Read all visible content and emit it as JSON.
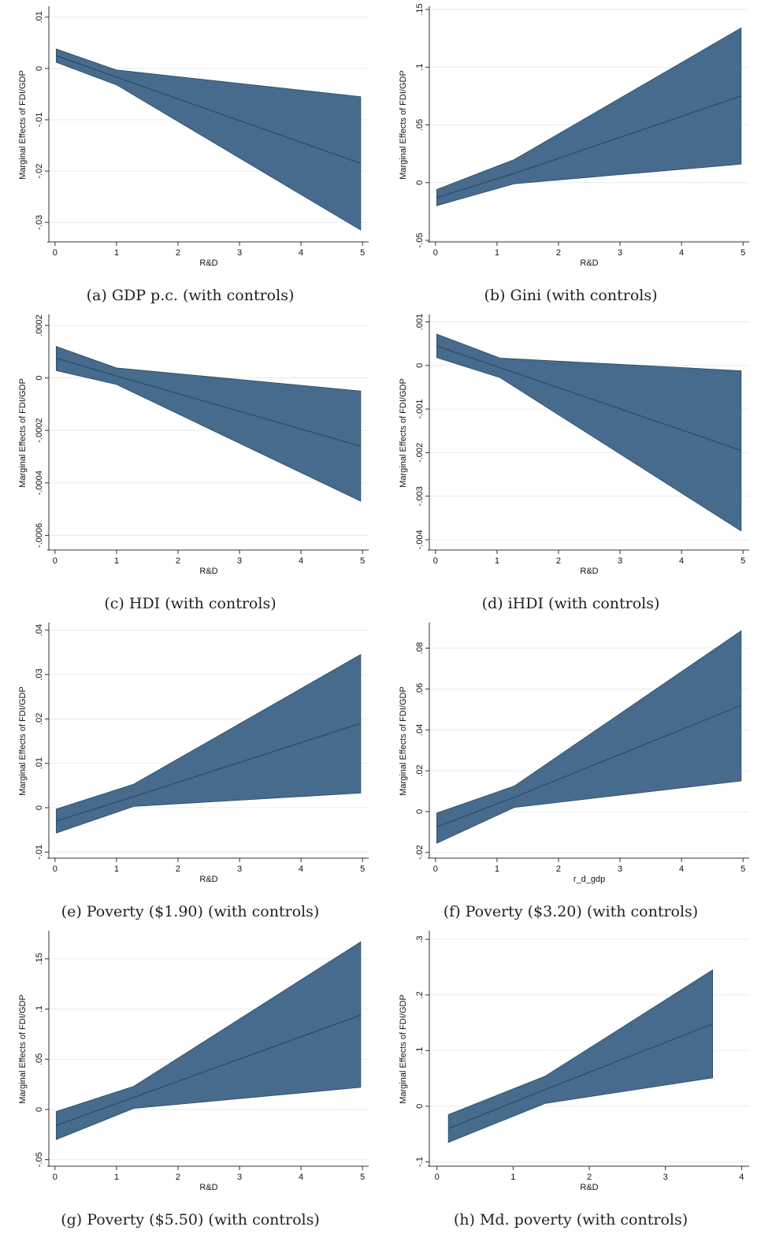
{
  "chart_data": [
    {
      "type": "area",
      "caption": "(a) GDP p.c. (with controls)",
      "xlabel": "R&D",
      "ylabel": "Marginal Effects of FDI/GDP",
      "xlim": [
        -0.1,
        5.1
      ],
      "ylim": [
        -0.0335,
        0.0115
      ],
      "xticks": [
        "0",
        "1",
        "2",
        "3",
        "4",
        "5"
      ],
      "xtick_values": [
        0,
        1,
        2,
        3,
        4,
        5
      ],
      "yticks": [
        "-.03",
        "-.02",
        "-.01",
        "0",
        ".01"
      ],
      "ytick_values": [
        -0.03,
        -0.02,
        -0.01,
        0,
        0.01
      ],
      "x": [
        0.02,
        1.0,
        4.97
      ],
      "estimate": [
        0.0025,
        -0.0017,
        -0.0185
      ],
      "upper": [
        0.0038,
        -0.0003,
        -0.0055
      ],
      "lower": [
        0.0012,
        -0.0032,
        -0.0315
      ],
      "color": "#476b8c",
      "line_color": "#2a4a68"
    },
    {
      "type": "area",
      "caption": "(b) Gini (with controls)",
      "xlabel": "R&D",
      "ylabel": "Marginal Effects of FDI/GDP",
      "xlim": [
        -0.1,
        5.1
      ],
      "ylim": [
        -0.05,
        0.15
      ],
      "xticks": [
        "0",
        "1",
        "2",
        "3",
        "4",
        "5"
      ],
      "xtick_values": [
        0,
        1,
        2,
        3,
        4,
        5
      ],
      "yticks": [
        "-.05",
        "0",
        ".05",
        ".1",
        ".15"
      ],
      "ytick_values": [
        -0.05,
        0,
        0.05,
        0.1,
        0.15
      ],
      "x": [
        0.02,
        1.28,
        4.97
      ],
      "estimate": [
        -0.013,
        0.008,
        0.075
      ],
      "upper": [
        -0.006,
        0.02,
        0.134
      ],
      "lower": [
        -0.02,
        -0.001,
        0.016
      ],
      "color": "#476b8c",
      "line_color": "#2a4a68"
    },
    {
      "type": "area",
      "caption": "(c) HDI (with controls)",
      "xlabel": "R&D",
      "ylabel": "Marginal Effects of FDI/GDP",
      "xlim": [
        -0.1,
        5.1
      ],
      "ylim": [
        -0.00065,
        0.00023
      ],
      "xticks": [
        "0",
        "1",
        "2",
        "3",
        "4",
        "5"
      ],
      "xtick_values": [
        0,
        1,
        2,
        3,
        4,
        5
      ],
      "yticks": [
        "-.0006",
        "-.0004",
        "-.0002",
        "0",
        ".0002"
      ],
      "ytick_values": [
        -0.0006,
        -0.0004,
        -0.0002,
        0,
        0.0002
      ],
      "x": [
        0.02,
        1.0,
        4.97
      ],
      "estimate": [
        7.5e-05,
        7.5e-06,
        -0.00026
      ],
      "upper": [
        0.00012,
        3.8e-05,
        -5e-05
      ],
      "lower": [
        2.8e-05,
        -2.5e-05,
        -0.00047
      ],
      "color": "#476b8c",
      "line_color": "#2a4a68"
    },
    {
      "type": "area",
      "caption": "(d) iHDI (with controls)",
      "xlabel": "R&D",
      "ylabel": "Marginal Effects of FDI/GDP",
      "xlim": [
        -0.1,
        5.1
      ],
      "ylim": [
        -0.0042,
        0.0011
      ],
      "xticks": [
        "0",
        "1",
        "2",
        "3",
        "4",
        "5"
      ],
      "xtick_values": [
        0,
        1,
        2,
        3,
        4,
        5
      ],
      "yticks": [
        "-.004",
        "-.003",
        "-.002",
        "-.001",
        "0",
        ".001"
      ],
      "ytick_values": [
        -0.004,
        -0.003,
        -0.002,
        -0.001,
        0,
        0.001
      ],
      "x": [
        0.02,
        1.05,
        4.97
      ],
      "estimate": [
        0.00045,
        -5e-05,
        -0.00195
      ],
      "upper": [
        0.00072,
        0.00017,
        -0.00012
      ],
      "lower": [
        0.00018,
        -0.00028,
        -0.0038
      ],
      "color": "#476b8c",
      "line_color": "#2a4a68"
    },
    {
      "type": "area",
      "caption": "(e) Poverty ($1.90) (with controls)",
      "xlabel": "R&D",
      "ylabel": "Marginal Effects of FDI/GDP",
      "xlim": [
        -0.1,
        5.1
      ],
      "ylim": [
        -0.011,
        0.041
      ],
      "xticks": [
        "0",
        "1",
        "2",
        "3",
        "4",
        "5"
      ],
      "xtick_values": [
        0,
        1,
        2,
        3,
        4,
        5
      ],
      "yticks": [
        "-.01",
        "0",
        ".01",
        ".02",
        ".03",
        ".04"
      ],
      "ytick_values": [
        -0.01,
        0,
        0.01,
        0.02,
        0.03,
        0.04
      ],
      "x": [
        0.02,
        1.28,
        4.97
      ],
      "estimate": [
        -0.003,
        0.0025,
        0.019
      ],
      "upper": [
        -0.0003,
        0.0053,
        0.0345
      ],
      "lower": [
        -0.0057,
        0.0003,
        0.0033
      ],
      "color": "#476b8c",
      "line_color": "#2a4a68"
    },
    {
      "type": "area",
      "caption": "(f) Poverty ($3.20) (with controls)",
      "xlabel": "r_d_gdp",
      "ylabel": "Marginal Effects of FDI/GDP",
      "xlim": [
        -0.1,
        5.1
      ],
      "ylim": [
        -0.022,
        0.091
      ],
      "xticks": [
        "0",
        "1",
        "2",
        "3",
        "4",
        "5"
      ],
      "xtick_values": [
        0,
        1,
        2,
        3,
        4,
        5
      ],
      "yticks": [
        "-.02",
        "0",
        ".02",
        ".04",
        ".06",
        ".08"
      ],
      "ytick_values": [
        -0.02,
        0,
        0.02,
        0.04,
        0.06,
        0.08
      ],
      "x": [
        0.02,
        1.28,
        4.97
      ],
      "estimate": [
        -0.0075,
        0.007,
        0.052
      ],
      "upper": [
        -0.0007,
        0.0125,
        0.0885
      ],
      "lower": [
        -0.0155,
        0.002,
        0.015
      ],
      "color": "#476b8c",
      "line_color": "#2a4a68"
    },
    {
      "type": "area",
      "caption": "(g) Poverty ($5.50) (with controls)",
      "xlabel": "R&D",
      "ylabel": "Marginal Effects of FDI/GDP",
      "xlim": [
        -0.1,
        5.1
      ],
      "ylim": [
        -0.055,
        0.175
      ],
      "xticks": [
        "0",
        "1",
        "2",
        "3",
        "4",
        "5"
      ],
      "xtick_values": [
        0,
        1,
        2,
        3,
        4,
        5
      ],
      "yticks": [
        "-.05",
        "0",
        ".05",
        ".1",
        ".15"
      ],
      "ytick_values": [
        -0.05,
        0,
        0.05,
        0.1,
        0.15
      ],
      "x": [
        0.02,
        1.28,
        4.97
      ],
      "estimate": [
        -0.016,
        0.012,
        0.094
      ],
      "upper": [
        -0.002,
        0.023,
        0.167
      ],
      "lower": [
        -0.03,
        0.001,
        0.022
      ],
      "color": "#476b8c",
      "line_color": "#2a4a68"
    },
    {
      "type": "area",
      "caption": "(h) Md. poverty (with controls)",
      "xlabel": "R&D",
      "ylabel": "Marginal Effects of FDI/GDP",
      "xlim": [
        -0.1,
        4.1
      ],
      "ylim": [
        -0.105,
        0.31
      ],
      "xticks": [
        "0",
        "1",
        "2",
        "3",
        "4"
      ],
      "xtick_values": [
        0,
        1,
        2,
        3,
        4
      ],
      "yticks": [
        "-.1",
        "0",
        ".1",
        ".2",
        ".3"
      ],
      "ytick_values": [
        -0.1,
        0,
        0.1,
        0.2,
        0.3
      ],
      "x": [
        0.15,
        1.42,
        3.62
      ],
      "estimate": [
        -0.04,
        0.03,
        0.148
      ],
      "upper": [
        -0.015,
        0.054,
        0.245
      ],
      "lower": [
        -0.065,
        0.005,
        0.051
      ],
      "color": "#476b8c",
      "line_color": "#2a4a68"
    }
  ]
}
